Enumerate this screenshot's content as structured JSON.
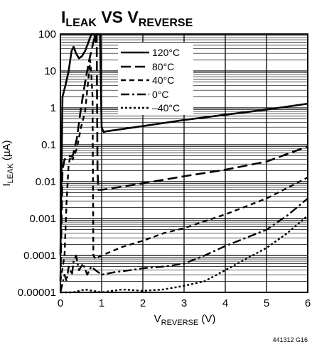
{
  "chart_data": {
    "type": "line",
    "title_main_1": "I",
    "title_sub_1": "LEAK",
    "title_mid": " VS V",
    "title_sub_2": "REVERSE",
    "xlabel_main": "V",
    "xlabel_sub": "REVERSE",
    "xlabel_unit": " (V)",
    "ylabel_main": "I",
    "ylabel_sub": "LEAK",
    "ylabel_unit": " (µA)",
    "figure_code": "441312 G16",
    "xlim": [
      0,
      6
    ],
    "ylim": [
      1e-05,
      100
    ],
    "y_scale": "log",
    "grid": true,
    "legend_position": "top-right",
    "x_tick_labels": [
      "0",
      "1",
      "2",
      "3",
      "4",
      "5",
      "6"
    ],
    "y_tick_labels": [
      "0.00001",
      "0.0001",
      "0.001",
      "0.01",
      "0.1",
      "1",
      "10",
      "100"
    ],
    "series": [
      {
        "name": "120°C",
        "style": "solid",
        "points": [
          [
            0.0,
            0.0001
          ],
          [
            0.05,
            2.0
          ],
          [
            0.12,
            4.0
          ],
          [
            0.2,
            10.0
          ],
          [
            0.27,
            35.0
          ],
          [
            0.32,
            45.0
          ],
          [
            0.38,
            30.0
          ],
          [
            0.45,
            22.0
          ],
          [
            0.52,
            25.0
          ],
          [
            0.6,
            35.0
          ],
          [
            0.68,
            60.0
          ],
          [
            0.75,
            100.0
          ],
          [
            0.82,
            100.0
          ],
          [
            0.86,
            60.0
          ],
          [
            0.88,
            100.0
          ],
          [
            0.9,
            100.0
          ],
          [
            0.96,
            100.0
          ],
          [
            1.0,
            0.3
          ],
          [
            1.05,
            0.22
          ],
          [
            1.1,
            0.23
          ],
          [
            2.0,
            0.32
          ],
          [
            3.0,
            0.47
          ],
          [
            4.0,
            0.65
          ],
          [
            5.0,
            0.9
          ],
          [
            6.0,
            1.3
          ]
        ]
      },
      {
        "name": "80°C",
        "style": "long-dash",
        "points": [
          [
            0.0,
            2e-05
          ],
          [
            0.05,
            0.02
          ],
          [
            0.1,
            0.04
          ],
          [
            0.2,
            0.05
          ],
          [
            0.3,
            0.05
          ],
          [
            0.4,
            0.15
          ],
          [
            0.5,
            1.0
          ],
          [
            0.6,
            5.0
          ],
          [
            0.7,
            20.0
          ],
          [
            0.8,
            60.0
          ],
          [
            0.85,
            100.0
          ],
          [
            0.88,
            100.0
          ],
          [
            0.9,
            0.02
          ],
          [
            0.92,
            0.006
          ],
          [
            1.0,
            0.006
          ],
          [
            2.0,
            0.009
          ],
          [
            3.0,
            0.014
          ],
          [
            4.0,
            0.021
          ],
          [
            5.0,
            0.035
          ],
          [
            6.0,
            0.09
          ]
        ]
      },
      {
        "name": "40°C",
        "style": "short-dash",
        "points": [
          [
            0.0,
            2e-05
          ],
          [
            0.1,
            0.0001
          ],
          [
            0.15,
            0.003
          ],
          [
            0.2,
            0.03
          ],
          [
            0.25,
            0.05
          ],
          [
            0.3,
            0.04
          ],
          [
            0.4,
            0.08
          ],
          [
            0.5,
            0.3
          ],
          [
            0.6,
            0.8
          ],
          [
            0.65,
            3.0
          ],
          [
            0.7,
            10.0
          ],
          [
            0.72,
            20.0
          ],
          [
            0.75,
            8.0
          ],
          [
            0.78,
            2.0
          ],
          [
            0.8,
            0.0001
          ],
          [
            0.85,
            8e-05
          ],
          [
            1.0,
            0.0001
          ],
          [
            1.5,
            0.00017
          ],
          [
            2.0,
            0.00025
          ],
          [
            2.5,
            0.0004
          ],
          [
            3.0,
            0.00055
          ],
          [
            4.0,
            0.0013
          ],
          [
            5.0,
            0.0035
          ],
          [
            6.0,
            0.013
          ]
        ]
      },
      {
        "name": "0°C",
        "style": "dash-dot",
        "points": [
          [
            0.0,
            1e-05
          ],
          [
            0.1,
            3e-05
          ],
          [
            0.15,
            2e-05
          ],
          [
            0.2,
            5e-05
          ],
          [
            0.28,
            3e-05
          ],
          [
            0.32,
            7e-05
          ],
          [
            0.38,
            0.0001
          ],
          [
            0.45,
            4e-05
          ],
          [
            0.55,
            6e-05
          ],
          [
            0.65,
            3e-05
          ],
          [
            0.75,
            5e-05
          ],
          [
            0.85,
            4e-05
          ],
          [
            1.0,
            3e-05
          ],
          [
            1.3,
            3.5e-05
          ],
          [
            1.7,
            4e-05
          ],
          [
            2.0,
            4.5e-05
          ],
          [
            2.5,
            5e-05
          ],
          [
            3.0,
            6e-05
          ],
          [
            3.5,
            0.0001
          ],
          [
            4.0,
            0.00018
          ],
          [
            4.5,
            0.0003
          ],
          [
            5.0,
            0.0005
          ],
          [
            5.5,
            0.0012
          ],
          [
            6.0,
            0.0035
          ]
        ]
      },
      {
        "name": "–40°C",
        "style": "dot",
        "points": [
          [
            0.0,
            1e-05
          ],
          [
            0.3,
            1e-05
          ],
          [
            0.6,
            1.2e-05
          ],
          [
            1.0,
            1e-05
          ],
          [
            1.5,
            1.2e-05
          ],
          [
            2.0,
            1.1e-05
          ],
          [
            2.5,
            1.2e-05
          ],
          [
            3.0,
            1.5e-05
          ],
          [
            3.5,
            2e-05
          ],
          [
            4.0,
            4e-05
          ],
          [
            4.5,
            8e-05
          ],
          [
            5.0,
            0.00016
          ],
          [
            5.5,
            0.0004
          ],
          [
            6.0,
            0.0012
          ]
        ]
      }
    ]
  }
}
